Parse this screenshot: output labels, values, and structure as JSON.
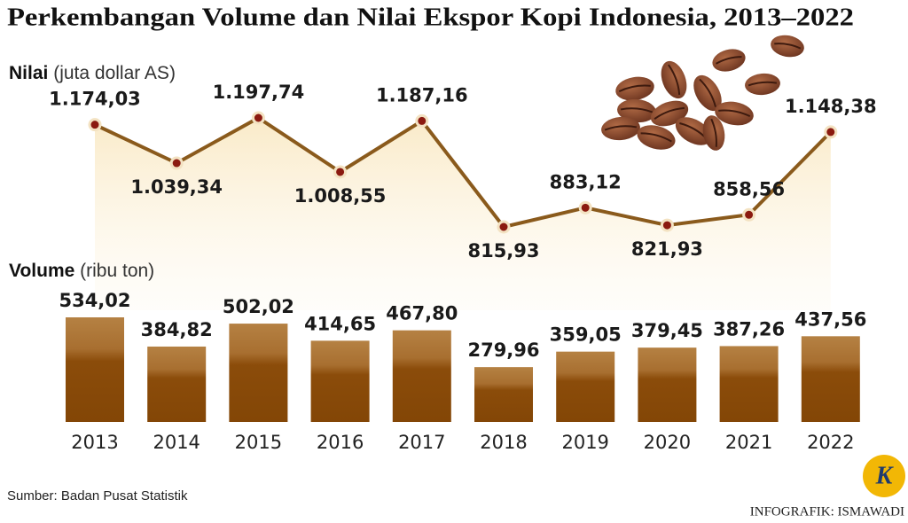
{
  "title": "Perkembangan Volume dan Nilai Ekspor Kopi Indonesia, 2013–2022",
  "source": "Sumber: Badan Pusat Statistik",
  "credit": "INFOGRAFIK: ISMAWADI",
  "logo": "K",
  "chart_data": [
    {
      "type": "line",
      "label": "Nilai",
      "unit": "(juta dollar AS)",
      "color": "#8a5a1c",
      "values": [
        1174.03,
        1039.34,
        1197.74,
        1008.55,
        1187.16,
        815.93,
        883.12,
        821.93,
        858.56,
        1148.38
      ],
      "value_labels": [
        "1.174,03",
        "1.039,34",
        "1.197,74",
        "1.008,55",
        "1.187,16",
        "815,93",
        "883,12",
        "821,93",
        "858,56",
        "1.148,38"
      ]
    },
    {
      "type": "bar",
      "label": "Volume",
      "unit": "(ribu ton)",
      "color": "#8b4c0a",
      "categories": [
        "2013",
        "2014",
        "2015",
        "2016",
        "2017",
        "2018",
        "2019",
        "2020",
        "2021",
        "2022"
      ],
      "values": [
        534.02,
        384.82,
        502.02,
        414.65,
        467.8,
        279.96,
        359.05,
        379.45,
        387.26,
        437.56
      ],
      "value_labels": [
        "534,02",
        "384,82",
        "502,02",
        "414,65",
        "467,80",
        "279,96",
        "359,05",
        "379,45",
        "387,26",
        "437,56"
      ]
    }
  ]
}
